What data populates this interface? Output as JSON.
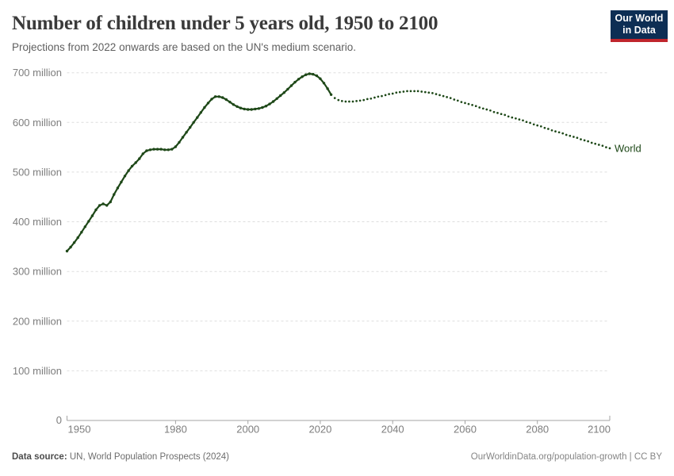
{
  "header": {
    "title": "Number of children under 5 years old, 1950 to 2100",
    "subtitle": "Projections from 2022 onwards are based on the UN's medium scenario.",
    "logo": {
      "line1": "Our World",
      "line2": "in Data",
      "bg_color": "#0d2e54",
      "stripe_color": "#c0252c"
    }
  },
  "footer": {
    "source_label": "Data source:",
    "source_value": "UN, World Population Prospects (2024)",
    "credit": "OurWorldinData.org/population-growth | CC BY"
  },
  "chart_data": {
    "type": "line",
    "title": "Number of children under 5 years old, 1950 to 2100",
    "subtitle": "Projections from 2022 onwards are based on the UN's medium scenario.",
    "entity": "World",
    "end_label": "World",
    "unit": "children under 5, millions",
    "line_color": "#1e4818",
    "grid": "horizontal dashed",
    "gridline_color": "#dedede",
    "axis_color": "#a3a3a3",
    "x_axis": {
      "range": [
        1950,
        2100
      ],
      "ticks": [
        1950,
        1980,
        2000,
        2020,
        2040,
        2060,
        2080,
        2100
      ]
    },
    "y_axis": {
      "range": [
        0,
        700
      ],
      "ticks": [
        0,
        100,
        200,
        300,
        400,
        500,
        600,
        700
      ],
      "tick_suffix": " million",
      "zero_label": "0"
    },
    "series": [
      {
        "name": "World (estimates)",
        "style": "solid-with-markers",
        "start_year": 1950,
        "values": [
          341,
          349,
          358,
          368,
          379,
          390,
          401,
          412,
          424,
          433,
          436,
          433,
          440,
          455,
          468,
          480,
          492,
          503,
          512,
          519,
          527,
          537,
          543,
          545,
          546,
          546,
          546,
          545,
          545,
          546,
          551,
          560,
          570,
          580,
          590,
          600,
          610,
          620,
          630,
          639,
          647,
          652,
          652,
          650,
          646,
          641,
          636,
          632,
          629,
          627,
          626,
          626,
          627,
          628,
          630,
          633,
          637,
          642,
          648,
          654,
          660,
          667,
          674,
          681,
          687,
          692,
          696,
          698,
          697,
          694,
          688,
          679,
          668,
          656
        ]
      },
      {
        "name": "World (UN medium projection)",
        "style": "dotted",
        "start_year": 2024,
        "values": [
          649,
          645,
          643,
          642,
          642,
          642,
          643,
          644,
          645,
          647,
          648,
          650,
          652,
          653,
          655,
          657,
          658,
          660,
          661,
          662,
          663,
          663,
          663,
          663,
          662,
          661,
          660,
          659,
          657,
          655,
          653,
          651,
          649,
          646,
          644,
          641,
          639,
          637,
          635,
          633,
          630,
          628,
          626,
          624,
          621,
          619,
          617,
          615,
          612,
          610,
          608,
          606,
          604,
          601,
          599,
          596,
          594,
          592,
          589,
          587,
          584,
          582,
          580,
          578,
          575,
          573,
          571,
          569,
          566,
          564,
          562,
          559,
          557,
          555,
          553,
          550,
          548
        ]
      }
    ]
  }
}
